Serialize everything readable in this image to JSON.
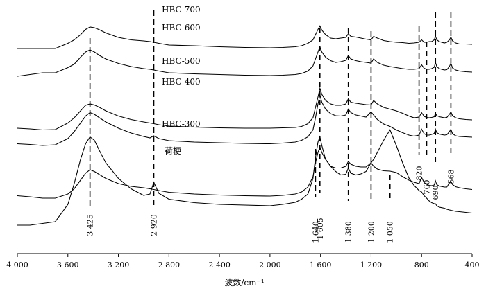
{
  "chart_data": {
    "type": "line",
    "xlabel": "波数/cm⁻¹",
    "ylabel": "",
    "xlim": [
      4000,
      400
    ],
    "x_reversed": true,
    "x_ticks": [
      {
        "value": 4000,
        "label": "4 000"
      },
      {
        "value": 3600,
        "label": "3 600"
      },
      {
        "value": 3200,
        "label": "3 200"
      },
      {
        "value": 2800,
        "label": "2 800"
      },
      {
        "value": 2400,
        "label": "2 400"
      },
      {
        "value": 2000,
        "label": "2 000"
      },
      {
        "value": 1600,
        "label": "1 600"
      },
      {
        "value": 1200,
        "label": "1 200"
      },
      {
        "value": 800,
        "label": "800"
      },
      {
        "value": 400,
        "label": "400"
      }
    ],
    "grid": false,
    "legend": "none",
    "peak_markers": [
      {
        "x": 3425,
        "label": "3 425"
      },
      {
        "x": 2920,
        "label": "2 920"
      },
      {
        "x": 1640,
        "label": "1 640"
      },
      {
        "x": 1605,
        "label": "1 605"
      },
      {
        "x": 1380,
        "label": "1 380"
      },
      {
        "x": 1200,
        "label": "1 200"
      },
      {
        "x": 1050,
        "label": "1 050"
      },
      {
        "x": 820,
        "label": "820"
      },
      {
        "x": 760,
        "label": "760"
      },
      {
        "x": 690,
        "label": "690"
      },
      {
        "x": 568,
        "label": "568"
      }
    ],
    "series": [
      {
        "name": "HBC-700",
        "x": [
          4000,
          3900,
          3800,
          3700,
          3600,
          3550,
          3500,
          3460,
          3425,
          3390,
          3350,
          3300,
          3200,
          3100,
          3000,
          2950,
          2920,
          2880,
          2800,
          2600,
          2400,
          2200,
          2000,
          1900,
          1800,
          1750,
          1700,
          1660,
          1640,
          1620,
          1605,
          1590,
          1560,
          1520,
          1480,
          1440,
          1400,
          1380,
          1360,
          1320,
          1280,
          1240,
          1200,
          1180,
          1150,
          1100,
          1050,
          1000,
          950,
          900,
          860,
          820,
          800,
          780,
          760,
          740,
          720,
          700,
          690,
          680,
          660,
          620,
          600,
          580,
          568,
          555,
          530,
          500,
          450,
          400
        ],
        "y": [
          86,
          86,
          86,
          86,
          87.5,
          88.5,
          90,
          91.5,
          92.2,
          92,
          91.4,
          90.5,
          89.2,
          88.5,
          88.2,
          88,
          87.8,
          87.5,
          87,
          86.8,
          86.5,
          86.3,
          86.2,
          86.3,
          86.5,
          86.8,
          87.5,
          88.5,
          90,
          91.5,
          92.5,
          91.3,
          90,
          89,
          88.8,
          89,
          89.2,
          90.3,
          89.5,
          89.3,
          89,
          88.7,
          88.5,
          89.5,
          89,
          88.3,
          88,
          87.8,
          87.7,
          87.5,
          87.6,
          87.8,
          88.5,
          87.8,
          87.8,
          88,
          88,
          88.5,
          89.6,
          88.5,
          88,
          87.6,
          87.8,
          88.5,
          89.3,
          88.2,
          87.6,
          87.3,
          87.3,
          87.2
        ]
      },
      {
        "name": "HBC-600",
        "x": [
          4000,
          3900,
          3800,
          3700,
          3600,
          3550,
          3500,
          3460,
          3425,
          3390,
          3350,
          3300,
          3200,
          3100,
          3000,
          2950,
          2920,
          2880,
          2800,
          2600,
          2400,
          2200,
          2000,
          1900,
          1800,
          1750,
          1700,
          1660,
          1640,
          1620,
          1605,
          1590,
          1560,
          1520,
          1480,
          1440,
          1400,
          1380,
          1360,
          1320,
          1280,
          1240,
          1200,
          1180,
          1150,
          1100,
          1050,
          1000,
          950,
          900,
          860,
          820,
          800,
          780,
          760,
          740,
          720,
          700,
          690,
          680,
          660,
          620,
          600,
          580,
          568,
          555,
          530,
          500,
          450,
          400
        ],
        "y": [
          78,
          78.5,
          79,
          79,
          80.5,
          81.5,
          83.5,
          85,
          85.6,
          85,
          84,
          83,
          81.7,
          80.8,
          80.2,
          80,
          79.8,
          79.5,
          79,
          78.7,
          78.5,
          78.3,
          78.2,
          78.3,
          78.5,
          78.8,
          79.5,
          81,
          83,
          85,
          86.5,
          85,
          83.5,
          82.5,
          82,
          82.2,
          82.6,
          84,
          83,
          82.5,
          82.2,
          82,
          81.8,
          83,
          82,
          81.2,
          80.8,
          80.5,
          80.2,
          80,
          80,
          80.2,
          81.3,
          80.3,
          80,
          80,
          80.2,
          80.6,
          82,
          80.8,
          80.2,
          79.8,
          79.9,
          80.8,
          81.8,
          80.4,
          79.8,
          79.5,
          79.3,
          79.2
        ]
      },
      {
        "name": "HBC-500",
        "x": [
          4000,
          3900,
          3800,
          3700,
          3600,
          3550,
          3500,
          3460,
          3425,
          3390,
          3350,
          3300,
          3200,
          3100,
          3000,
          2950,
          2920,
          2880,
          2800,
          2600,
          2400,
          2200,
          2000,
          1900,
          1800,
          1750,
          1700,
          1660,
          1640,
          1620,
          1605,
          1590,
          1560,
          1520,
          1480,
          1440,
          1400,
          1380,
          1360,
          1320,
          1280,
          1240,
          1200,
          1180,
          1150,
          1100,
          1050,
          1000,
          950,
          900,
          860,
          820,
          800,
          780,
          760,
          740,
          720,
          700,
          690,
          680,
          660,
          620,
          600,
          580,
          568,
          555,
          530,
          500,
          450,
          400
        ],
        "y": [
          63,
          62.8,
          62.5,
          62.6,
          64.5,
          66,
          68,
          69.6,
          70,
          69.7,
          69,
          68,
          66.5,
          65.5,
          64.8,
          64.5,
          64.3,
          64,
          63.6,
          63.3,
          63.1,
          63,
          63,
          63.1,
          63.2,
          63.5,
          64.3,
          66,
          69,
          72,
          74.5,
          72.8,
          71,
          70,
          69.6,
          69.6,
          70,
          71.5,
          70.5,
          70.2,
          70,
          69.8,
          69.7,
          71,
          70,
          69,
          68.5,
          68,
          67.3,
          66.5,
          66,
          66.2,
          67.5,
          66.4,
          66.1,
          66,
          66.1,
          66.3,
          67.3,
          66.6,
          66.3,
          66,
          66.1,
          67,
          67.7,
          66.6,
          66,
          65.7,
          65.5,
          65.4
        ]
      },
      {
        "name": "HBC-400",
        "x": [
          4000,
          3900,
          3800,
          3700,
          3600,
          3550,
          3500,
          3460,
          3425,
          3390,
          3350,
          3300,
          3200,
          3100,
          3000,
          2950,
          2920,
          2880,
          2800,
          2600,
          2400,
          2200,
          2000,
          1900,
          1800,
          1750,
          1700,
          1660,
          1640,
          1620,
          1605,
          1590,
          1560,
          1520,
          1480,
          1440,
          1400,
          1380,
          1360,
          1320,
          1280,
          1240,
          1200,
          1180,
          1150,
          1100,
          1050,
          1000,
          950,
          900,
          860,
          820,
          800,
          780,
          760,
          740,
          720,
          700,
          690,
          680,
          660,
          620,
          600,
          580,
          568,
          555,
          530,
          500,
          450,
          400
        ],
        "y": [
          58.5,
          58.3,
          58,
          58.2,
          60,
          62,
          64.5,
          66.5,
          67.5,
          67,
          66,
          64.8,
          63,
          61.6,
          60.6,
          60.2,
          60.8,
          60,
          59.4,
          59,
          58.8,
          58.6,
          58.5,
          58.7,
          59,
          59.5,
          60.5,
          62.5,
          66,
          70,
          72.6,
          70.5,
          68.5,
          67.2,
          66.6,
          66.5,
          66.8,
          68.5,
          67.5,
          66.8,
          66.5,
          66.2,
          67.7,
          66.8,
          65.5,
          64.2,
          63.5,
          62.5,
          61.7,
          61,
          60.7,
          61,
          62.7,
          61.4,
          61,
          61,
          61.2,
          61.5,
          62.7,
          61.7,
          61.3,
          61,
          61.1,
          62,
          62.7,
          61.4,
          60.8,
          60.6,
          60.5,
          60.4
        ]
      },
      {
        "name": "HBC-300",
        "x": [
          4000,
          3900,
          3800,
          3700,
          3600,
          3550,
          3500,
          3460,
          3425,
          3390,
          3350,
          3300,
          3200,
          3100,
          3000,
          2950,
          2920,
          2880,
          2800,
          2600,
          2400,
          2200,
          2000,
          1900,
          1800,
          1750,
          1700,
          1660,
          1640,
          1620,
          1605,
          1590,
          1560,
          1520,
          1480,
          1440,
          1400,
          1380,
          1360,
          1320,
          1280,
          1240,
          1200,
          1180,
          1150,
          1100,
          1050,
          1000,
          950,
          900,
          860,
          820,
          800,
          780,
          760,
          740,
          720,
          700,
          690,
          680,
          660,
          620,
          600,
          580,
          568,
          555,
          530,
          500,
          450,
          400
        ],
        "y": [
          43.5,
          43.2,
          42.8,
          42.8,
          44,
          45.5,
          48,
          50,
          51,
          50.5,
          49.6,
          48.5,
          47,
          46.2,
          45.8,
          45.5,
          45.3,
          45,
          44.5,
          44,
          43.7,
          43.5,
          43.4,
          43.6,
          44,
          44.6,
          46,
          49,
          53,
          56,
          57.6,
          56,
          54,
          52,
          51.5,
          51.5,
          52,
          53.4,
          52.6,
          52,
          51.8,
          51.8,
          53,
          52,
          51.2,
          50.7,
          50.6,
          50.2,
          49,
          48,
          47.4,
          47,
          48.8,
          47.3,
          46.8,
          46.5,
          46.4,
          46.6,
          47.8,
          46.7,
          46.3,
          46,
          46,
          47.2,
          47.7,
          46.7,
          46.1,
          45.8,
          45.5,
          45.3
        ]
      },
      {
        "name": "荷梗",
        "x": [
          4000,
          3900,
          3800,
          3700,
          3600,
          3550,
          3500,
          3460,
          3425,
          3390,
          3350,
          3300,
          3200,
          3100,
          3000,
          2950,
          2920,
          2880,
          2800,
          2600,
          2400,
          2200,
          2000,
          1900,
          1800,
          1750,
          1700,
          1660,
          1640,
          1620,
          1605,
          1590,
          1560,
          1520,
          1480,
          1440,
          1400,
          1380,
          1360,
          1320,
          1280,
          1240,
          1200,
          1180,
          1150,
          1100,
          1050,
          1000,
          950,
          900,
          860,
          820,
          800,
          780,
          760,
          740,
          720,
          700,
          690,
          680,
          660,
          620,
          600,
          580,
          568,
          555,
          530,
          500,
          450,
          400
        ],
        "y": [
          35,
          35,
          35.5,
          36,
          41,
          47,
          54,
          58.5,
          60.5,
          59.5,
          56.5,
          53,
          48.5,
          45.5,
          43.6,
          44,
          47.4,
          44.2,
          42.5,
          41.5,
          41,
          40.8,
          40.6,
          41,
          41.6,
          42.5,
          44,
          48.5,
          54.5,
          59,
          60.5,
          58,
          54,
          52,
          50.5,
          49.5,
          49.7,
          51.5,
          50,
          49.5,
          49.8,
          50.5,
          53,
          54,
          56,
          59.5,
          62.5,
          58,
          53,
          48.6,
          46.5,
          45,
          44.6,
          43.5,
          42.8,
          42,
          41.5,
          41.2,
          41.2,
          40.6,
          40.2,
          39.9,
          39.6,
          39.4,
          39.3,
          39.2,
          39,
          38.9,
          38.7,
          38.5
        ]
      }
    ]
  }
}
